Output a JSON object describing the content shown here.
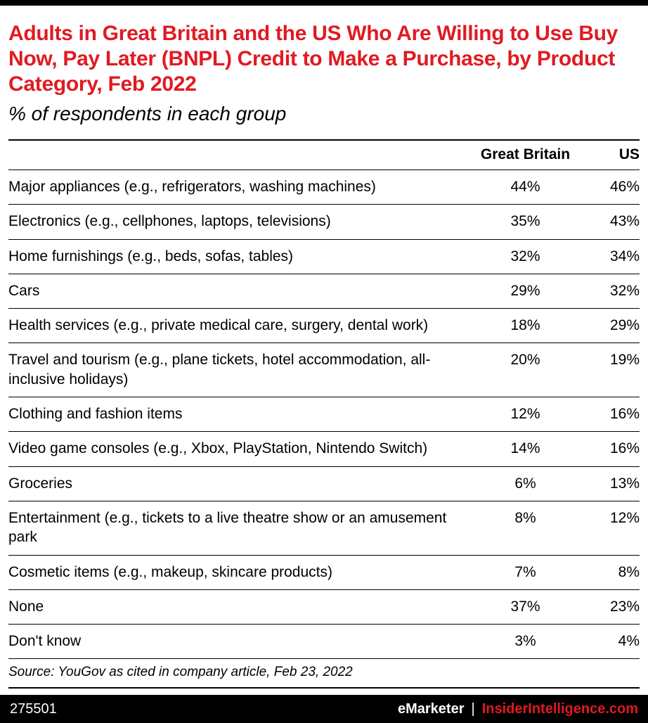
{
  "meta": {
    "colors": {
      "accent": "#e01a22",
      "bar": "#000000"
    }
  },
  "header": {
    "title": "Adults in Great Britain and the US Who Are Willing to Use Buy Now, Pay Later (BNPL) Credit to Make a Purchase, by Product Category, Feb 2022",
    "subtitle": "% of respondents in each group"
  },
  "chart_data": {
    "type": "table",
    "title": "Adults in Great Britain and the US Who Are Willing to Use Buy Now, Pay Later (BNPL) Credit to Make a Purchase, by Product Category, Feb 2022",
    "subtitle": "% of respondents in each group",
    "columns": [
      "",
      "Great Britain",
      "US"
    ],
    "categories": [
      "Major appliances (e.g., refrigerators, washing machines)",
      "Electronics (e.g., cellphones, laptops, televisions)",
      "Home furnishings (e.g., beds, sofas, tables)",
      "Cars",
      "Health services (e.g., private medical care, surgery, dental work)",
      "Travel and tourism (e.g., plane tickets, hotel accommodation, all-inclusive holidays)",
      "Clothing and fashion items",
      "Video game consoles (e.g., Xbox, PlayStation, Nintendo Switch)",
      "Groceries",
      "Entertainment (e.g., tickets to a live theatre show or an amusement park",
      "Cosmetic items (e.g., makeup, skincare products)",
      "None",
      "Don't know"
    ],
    "series": [
      {
        "name": "Great Britain",
        "values": [
          44,
          35,
          32,
          29,
          18,
          20,
          12,
          14,
          6,
          8,
          7,
          37,
          3
        ]
      },
      {
        "name": "US",
        "values": [
          46,
          43,
          34,
          32,
          29,
          19,
          16,
          16,
          13,
          12,
          8,
          23,
          4
        ]
      }
    ],
    "rows": [
      {
        "category": "Major appliances (e.g., refrigerators, washing machines)",
        "great_britain": "44%",
        "us": "46%"
      },
      {
        "category": "Electronics (e.g., cellphones, laptops, televisions)",
        "great_britain": "35%",
        "us": "43%"
      },
      {
        "category": "Home furnishings (e.g., beds, sofas, tables)",
        "great_britain": "32%",
        "us": "34%"
      },
      {
        "category": "Cars",
        "great_britain": "29%",
        "us": "32%"
      },
      {
        "category": "Health services (e.g., private medical care, surgery, dental work)",
        "great_britain": "18%",
        "us": "29%"
      },
      {
        "category": "Travel and tourism (e.g., plane tickets, hotel accommodation, all-inclusive holidays)",
        "great_britain": "20%",
        "us": "19%"
      },
      {
        "category": "Clothing and fashion items",
        "great_britain": "12%",
        "us": "16%"
      },
      {
        "category": "Video game consoles (e.g., Xbox, PlayStation, Nintendo Switch)",
        "great_britain": "14%",
        "us": "16%"
      },
      {
        "category": "Groceries",
        "great_britain": "6%",
        "us": "13%"
      },
      {
        "category": "Entertainment (e.g., tickets to a live theatre show or an amusement park",
        "great_britain": "8%",
        "us": "12%"
      },
      {
        "category": "Cosmetic items (e.g., makeup, skincare products)",
        "great_britain": "7%",
        "us": "8%"
      },
      {
        "category": "None",
        "great_britain": "37%",
        "us": "23%"
      },
      {
        "category": "Don't know",
        "great_britain": "3%",
        "us": "4%"
      }
    ],
    "source": "Source: YouGov as cited in company article, Feb 23, 2022"
  },
  "footer": {
    "chart_id": "275501",
    "brand": "eMarketer",
    "separator": "|",
    "site": "InsiderIntelligence.com"
  }
}
